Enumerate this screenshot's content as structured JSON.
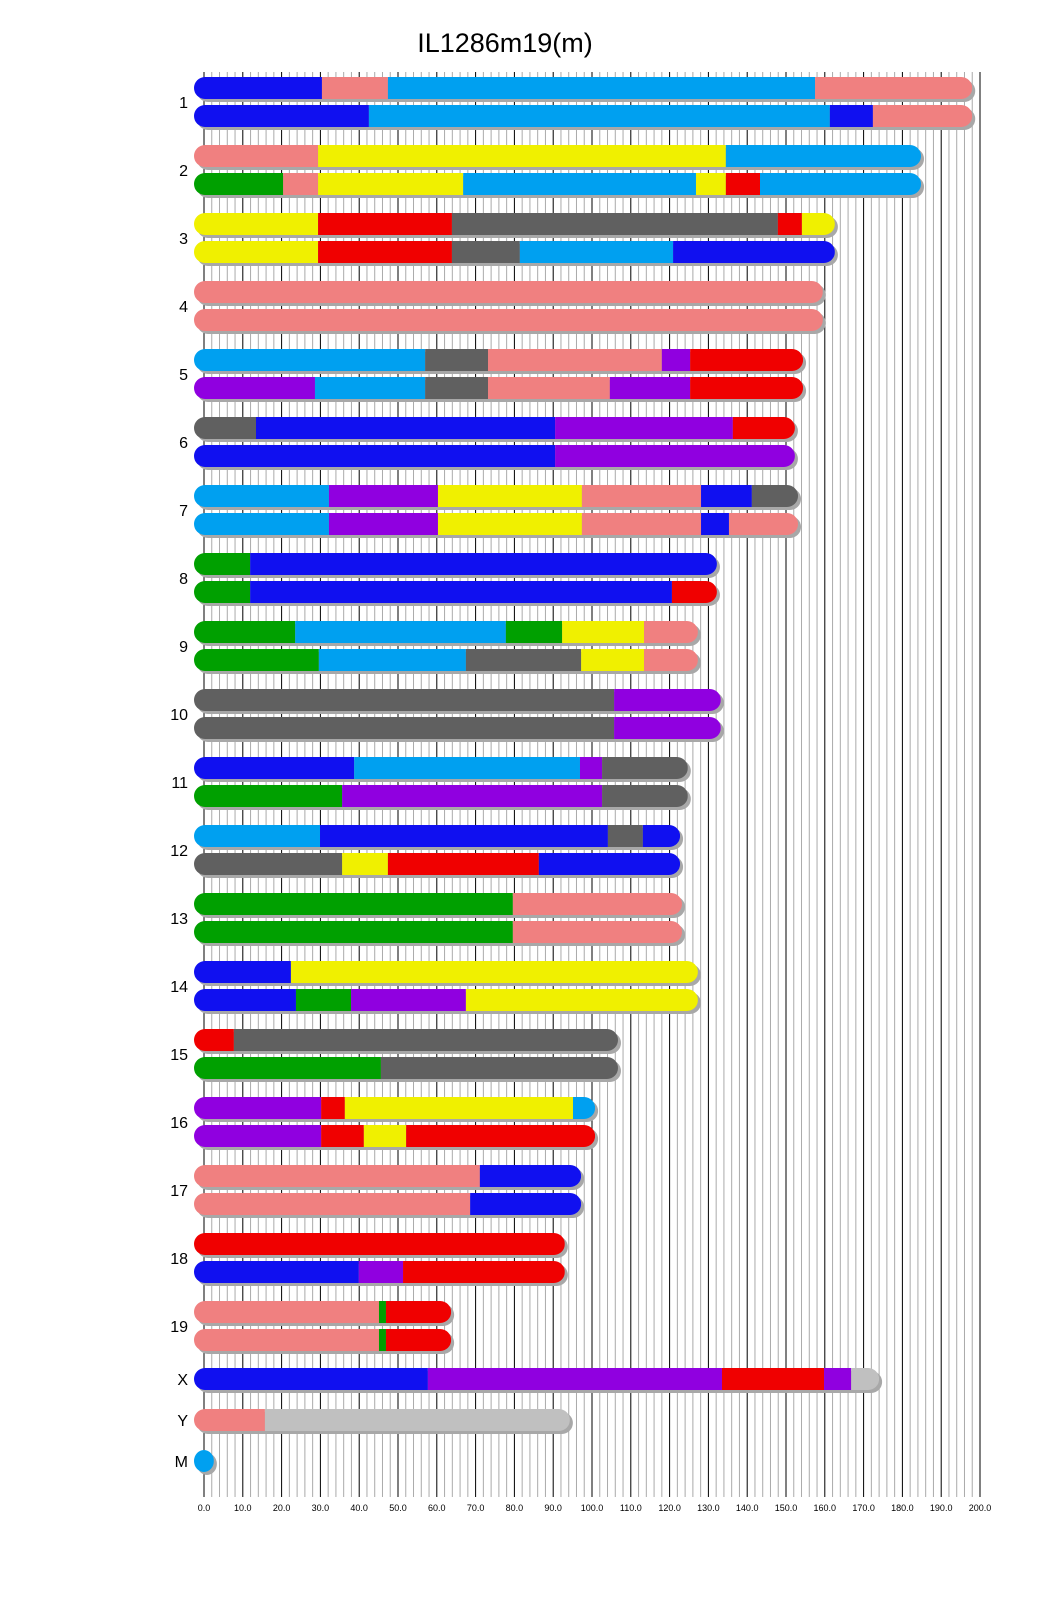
{
  "chart_data": {
    "type": "bar",
    "title": "IL1286m19(m)",
    "xlim": [
      0,
      200
    ],
    "x_ticks": [
      "0.0",
      "10.0",
      "20.0",
      "30.0",
      "40.0",
      "50.0",
      "60.0",
      "70.0",
      "80.0",
      "90.0",
      "100.0",
      "110.0",
      "120.0",
      "130.0",
      "140.0",
      "150.0",
      "160.0",
      "170.0",
      "180.0",
      "190.0",
      "200.0"
    ],
    "grid": {
      "major_every": 10,
      "minor_every": 2
    },
    "colors": {
      "blue": "#1010f0",
      "lightblue": "#00a0f0",
      "salmon": "#f08080",
      "yellow": "#f0f000",
      "red": "#f00000",
      "grey": "#606060",
      "purple": "#9000e0",
      "green": "#00a000",
      "lightgrey": "#c0c0c0"
    },
    "chromosomes": [
      {
        "label": "1",
        "haplotypes": [
          [
            [
              30.4,
              "blue"
            ],
            [
              47.4,
              "salmon"
            ],
            [
              157.5,
              "lightblue"
            ],
            [
              198,
              "salmon"
            ]
          ],
          [
            [
              42.5,
              "blue"
            ],
            [
              161.3,
              "lightblue"
            ],
            [
              172.4,
              "blue"
            ],
            [
              198,
              "salmon"
            ]
          ]
        ]
      },
      {
        "label": "2",
        "haplotypes": [
          [
            [
              29.4,
              "salmon"
            ],
            [
              134.5,
              "yellow"
            ],
            [
              184.8,
              "lightblue"
            ]
          ],
          [
            [
              20.4,
              "green"
            ],
            [
              29.4,
              "salmon"
            ],
            [
              66.8,
              "yellow"
            ],
            [
              126.8,
              "lightblue"
            ],
            [
              134.5,
              "yellow"
            ],
            [
              143.3,
              "red"
            ],
            [
              184.8,
              "lightblue"
            ]
          ]
        ]
      },
      {
        "label": "3",
        "haplotypes": [
          [
            [
              29.4,
              "yellow"
            ],
            [
              63.9,
              "red"
            ],
            [
              147.9,
              "grey"
            ],
            [
              154.1,
              "red"
            ],
            [
              162.6,
              "yellow"
            ]
          ],
          [
            [
              29.4,
              "yellow"
            ],
            [
              63.9,
              "red"
            ],
            [
              81.4,
              "grey"
            ],
            [
              120.9,
              "lightblue"
            ],
            [
              162.6,
              "blue"
            ]
          ]
        ]
      },
      {
        "label": "4",
        "haplotypes": [
          [
            [
              159.5,
              "salmon"
            ]
          ],
          [
            [
              159.5,
              "salmon"
            ]
          ]
        ]
      },
      {
        "label": "5",
        "haplotypes": [
          [
            [
              57.0,
              "lightblue"
            ],
            [
              73.2,
              "grey"
            ],
            [
              118.0,
              "salmon"
            ],
            [
              125.3,
              "purple"
            ],
            [
              154.4,
              "red"
            ]
          ],
          [
            [
              28.6,
              "purple"
            ],
            [
              57.0,
              "lightblue"
            ],
            [
              73.2,
              "grey"
            ],
            [
              104.6,
              "salmon"
            ],
            [
              125.3,
              "purple"
            ],
            [
              154.4,
              "red"
            ]
          ]
        ]
      },
      {
        "label": "6",
        "haplotypes": [
          [
            [
              13.4,
              "grey"
            ],
            [
              90.5,
              "blue"
            ],
            [
              136.3,
              "purple"
            ],
            [
              152.3,
              "red"
            ]
          ],
          [
            [
              90.5,
              "blue"
            ],
            [
              152.3,
              "purple"
            ]
          ]
        ]
      },
      {
        "label": "7",
        "haplotypes": [
          [
            [
              32.2,
              "lightblue"
            ],
            [
              60.3,
              "purple"
            ],
            [
              97.4,
              "yellow"
            ],
            [
              128.1,
              "salmon"
            ],
            [
              141.2,
              "blue"
            ],
            [
              153.1,
              "grey"
            ]
          ],
          [
            [
              32.2,
              "lightblue"
            ],
            [
              60.3,
              "purple"
            ],
            [
              97.4,
              "yellow"
            ],
            [
              128.1,
              "salmon"
            ],
            [
              135.3,
              "blue"
            ],
            [
              153.1,
              "salmon"
            ]
          ]
        ]
      },
      {
        "label": "8",
        "haplotypes": [
          [
            [
              11.9,
              "green"
            ],
            [
              132.2,
              "blue"
            ]
          ],
          [
            [
              11.9,
              "green"
            ],
            [
              120.6,
              "blue"
            ],
            [
              132.2,
              "red"
            ]
          ]
        ]
      },
      {
        "label": "9",
        "haplotypes": [
          [
            [
              23.5,
              "green"
            ],
            [
              77.8,
              "lightblue"
            ],
            [
              92.3,
              "green"
            ],
            [
              113.4,
              "yellow"
            ],
            [
              127.3,
              "salmon"
            ]
          ],
          [
            [
              29.6,
              "green"
            ],
            [
              67.5,
              "lightblue"
            ],
            [
              97.2,
              "grey"
            ],
            [
              113.4,
              "yellow"
            ],
            [
              127.3,
              "salmon"
            ]
          ]
        ]
      },
      {
        "label": "10",
        "haplotypes": [
          [
            [
              105.7,
              "grey"
            ],
            [
              133.2,
              "purple"
            ]
          ],
          [
            [
              105.7,
              "grey"
            ],
            [
              133.2,
              "purple"
            ]
          ]
        ]
      },
      {
        "label": "11",
        "haplotypes": [
          [
            [
              38.7,
              "blue"
            ],
            [
              96.9,
              "lightblue"
            ],
            [
              102.6,
              "purple"
            ],
            [
              124.7,
              "grey"
            ]
          ],
          [
            [
              35.6,
              "green"
            ],
            [
              102.6,
              "purple"
            ],
            [
              124.7,
              "grey"
            ]
          ]
        ]
      },
      {
        "label": "12",
        "haplotypes": [
          [
            [
              29.9,
              "lightblue"
            ],
            [
              104.1,
              "blue"
            ],
            [
              113.1,
              "grey"
            ],
            [
              122.7,
              "blue"
            ]
          ],
          [
            [
              35.6,
              "grey"
            ],
            [
              47.4,
              "yellow"
            ],
            [
              86.3,
              "red"
            ],
            [
              122.7,
              "blue"
            ]
          ]
        ]
      },
      {
        "label": "13",
        "haplotypes": [
          [
            [
              79.6,
              "green"
            ],
            [
              123.2,
              "salmon"
            ]
          ],
          [
            [
              79.6,
              "green"
            ],
            [
              123.2,
              "salmon"
            ]
          ]
        ]
      },
      {
        "label": "14",
        "haplotypes": [
          [
            [
              22.4,
              "blue"
            ],
            [
              127.3,
              "yellow"
            ]
          ],
          [
            [
              23.7,
              "blue"
            ],
            [
              37.9,
              "green"
            ],
            [
              67.5,
              "purple"
            ],
            [
              127.3,
              "yellow"
            ]
          ]
        ]
      },
      {
        "label": "15",
        "haplotypes": [
          [
            [
              7.7,
              "red"
            ],
            [
              106.7,
              "grey"
            ]
          ],
          [
            [
              45.6,
              "green"
            ],
            [
              106.7,
              "grey"
            ]
          ]
        ]
      },
      {
        "label": "16",
        "haplotypes": [
          [
            [
              30.2,
              "purple"
            ],
            [
              36.3,
              "red"
            ],
            [
              95.1,
              "yellow"
            ],
            [
              100.8,
              "lightblue"
            ]
          ],
          [
            [
              30.2,
              "purple"
            ],
            [
              41.2,
              "red"
            ],
            [
              52.1,
              "yellow"
            ],
            [
              100.8,
              "red"
            ]
          ]
        ]
      },
      {
        "label": "17",
        "haplotypes": [
          [
            [
              71.1,
              "salmon"
            ],
            [
              97.2,
              "blue"
            ]
          ],
          [
            [
              68.6,
              "salmon"
            ],
            [
              97.2,
              "blue"
            ]
          ]
        ]
      },
      {
        "label": "18",
        "haplotypes": [
          [
            [
              93.0,
              "red"
            ]
          ],
          [
            [
              39.9,
              "blue"
            ],
            [
              51.3,
              "purple"
            ],
            [
              93.0,
              "red"
            ]
          ]
        ]
      },
      {
        "label": "19",
        "haplotypes": [
          [
            [
              45.1,
              "salmon"
            ],
            [
              46.9,
              "green"
            ],
            [
              63.7,
              "red"
            ]
          ],
          [
            [
              45.1,
              "salmon"
            ],
            [
              46.9,
              "green"
            ],
            [
              63.7,
              "red"
            ]
          ]
        ]
      },
      {
        "label": "X",
        "haplotypes": [
          [
            [
              57.7,
              "blue"
            ],
            [
              133.5,
              "purple"
            ],
            [
              159.8,
              "red"
            ],
            [
              166.8,
              "purple"
            ],
            [
              174.0,
              "lightgrey"
            ]
          ]
        ]
      },
      {
        "label": "Y",
        "haplotypes": [
          [
            [
              15.7,
              "salmon"
            ],
            [
              94.3,
              "lightgrey"
            ]
          ]
        ]
      },
      {
        "label": "M",
        "haplotypes": [
          [
            [
              1,
              "lightblue"
            ]
          ]
        ]
      }
    ]
  }
}
